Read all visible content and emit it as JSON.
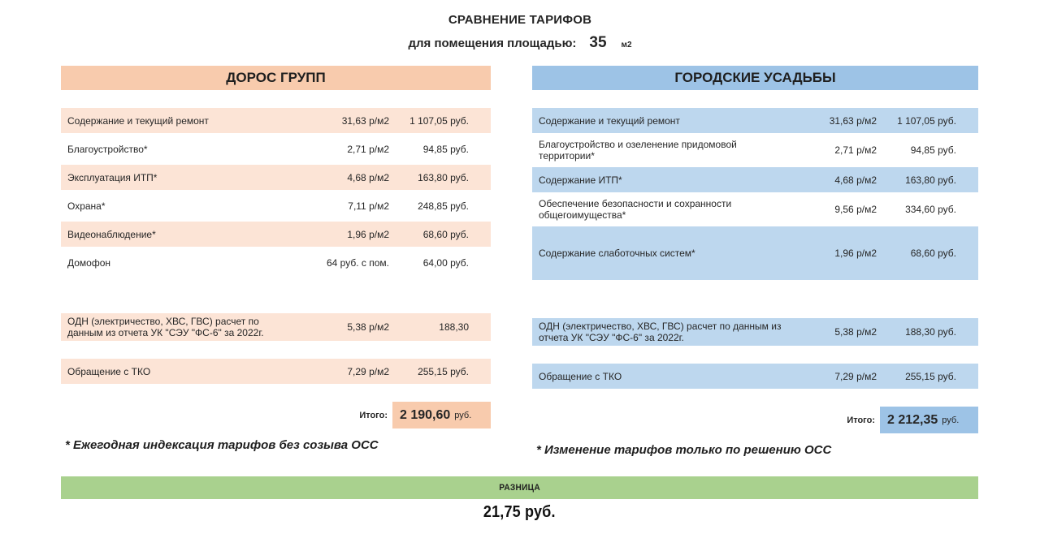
{
  "title": {
    "heading": "СРАВНЕНИЕ ТАРИФОВ",
    "area_label": "для помещения площадью:",
    "area_value": "35",
    "area_unit": "м2"
  },
  "colors": {
    "left_header": "#F8CBAD",
    "left_row": "#FCE4D6",
    "right_header": "#9DC3E6",
    "right_row": "#BDD7EE",
    "difference_bar": "#A9D18E"
  },
  "left": {
    "name": "ДОРОС ГРУПП",
    "sections": [
      {
        "rows": [
          {
            "label": "Содержание и текущий ремонт",
            "rate": "31,63 р/м2",
            "amount": "1 107,05 руб.",
            "shaded": true
          },
          {
            "label": "Благоустройство*",
            "rate": "2,71 р/м2",
            "amount": "94,85 руб.",
            "shaded": false
          },
          {
            "label": "Эксплуатация ИТП*",
            "rate": "4,68 р/м2",
            "amount": "163,80 руб.",
            "shaded": true
          },
          {
            "label": "Охрана*",
            "rate": "7,11 р/м2",
            "amount": "248,85 руб.",
            "shaded": false
          },
          {
            "label": "Видеонаблюдение*",
            "rate": "1,96 р/м2",
            "amount": "68,60 руб.",
            "shaded": true
          },
          {
            "label": "Домофон",
            "rate": "64 руб. с пом.",
            "amount": "64,00 руб.",
            "shaded": false
          }
        ]
      },
      {
        "rows": [
          {
            "label": "ОДН (электричество, ХВС, ГВС) расчет по данным из отчета УК \"СЭУ \"ФС-6\" за 2022г.",
            "rate": "5,38 р/м2",
            "amount": "188,30",
            "shaded": true
          }
        ]
      },
      {
        "rows": [
          {
            "label": "Обращение с ТКО",
            "rate": "7,29 р/м2",
            "amount": "255,15 руб.",
            "shaded": true
          }
        ]
      }
    ],
    "total_label": "Итого:",
    "total_value": "2 190,60",
    "total_unit": "руб.",
    "footnote": "* Ежегодная индексация тарифов без созыва ОСС"
  },
  "right": {
    "name": "ГОРОДСКИЕ УСАДЬБЫ",
    "sections": [
      {
        "rows": [
          {
            "label": "Содержание и текущий ремонт",
            "rate": "31,63 р/м2",
            "amount": "1 107,05 руб.",
            "shaded": true
          },
          {
            "label": "Благоустройство и озеленение придомовой территории*",
            "rate": "2,71 р/м2",
            "amount": "94,85 руб.",
            "shaded": false
          },
          {
            "label": "Содержание ИТП*",
            "rate": "4,68 р/м2",
            "amount": "163,80 руб.",
            "shaded": true
          },
          {
            "label": "Обеспечение безопасности и сохранности общегоимущества*",
            "rate": "9,56 р/м2",
            "amount": "334,60 руб.",
            "shaded": false
          },
          {
            "label": "Содержание слаботочных систем*",
            "rate": "1,96 р/м2",
            "amount": "68,60 руб.",
            "shaded": true
          }
        ]
      },
      {
        "rows": [
          {
            "label": "ОДН (электричество, ХВС, ГВС) расчет по данным из отчета УК \"СЭУ \"ФС-6\" за 2022г.",
            "rate": "5,38 р/м2",
            "amount": "188,30 руб.",
            "shaded": true
          }
        ]
      },
      {
        "rows": [
          {
            "label": "Обращение с ТКО",
            "rate": "7,29 р/м2",
            "amount": "255,15 руб.",
            "shaded": true
          }
        ]
      }
    ],
    "total_label": "Итого:",
    "total_value": "2 212,35",
    "total_unit": "руб.",
    "footnote": "* Изменение тарифов только по решению ОСС"
  },
  "difference": {
    "label": "РАЗНИЦА",
    "value": "21,75 руб."
  }
}
